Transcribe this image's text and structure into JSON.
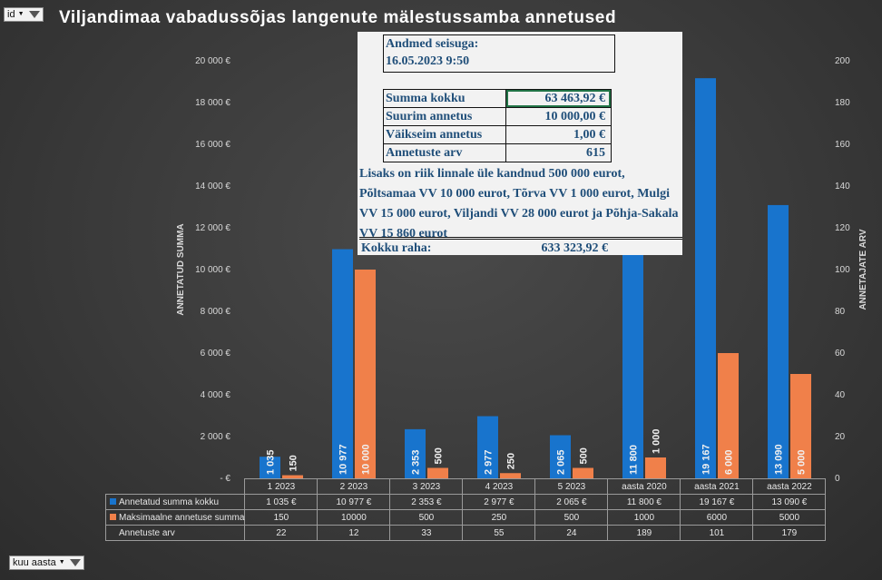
{
  "filters": {
    "top": "id",
    "bottom": "kuu aasta"
  },
  "title": "Viljandimaa vabadussõjas langenute mälestussamba annetused",
  "colors": {
    "blue": "#1874cd",
    "orange": "#f0804a"
  },
  "info": {
    "date_label": "Andmed seisuga:",
    "date_value": "16.05.2023 9:50",
    "rows": [
      {
        "k": "Summa kokku",
        "v": "63 463,92 €"
      },
      {
        "k": "Suurim annetus",
        "v": "10 000,00 €"
      },
      {
        "k": "Väikseim annetus",
        "v": "1,00 €"
      },
      {
        "k": "Annetuste arv",
        "v": "615"
      }
    ],
    "note": "Lisaks on riik linnale üle kandnud 500 000 eurot, Põltsamaa VV 10 000 eurot, Tõrva VV 1 000 eurot, Mulgi VV 15 000 eurot, Viljandi VV 28 000 eurot ja Põhja-Sakala VV 15 860 eurot",
    "total_label": "Kokku raha:",
    "total_value": "633 323,92 €"
  },
  "chart_data": {
    "type": "bar",
    "title": "Viljandimaa vabadussõjas langenute mälestussamba annetused",
    "categories": [
      "1 2023",
      "2 2023",
      "3 2023",
      "4 2023",
      "5 2023",
      "aasta 2020",
      "aasta 2021",
      "aasta 2022"
    ],
    "ylabel": "ANNETATUD SUMMA",
    "y2label": "ANNETAJATE ARV",
    "ylim": [
      0,
      20000
    ],
    "y2lim": [
      0,
      200
    ],
    "yticks": [
      "-  €",
      "2 000 €",
      "4 000 €",
      "6 000 €",
      "8 000 €",
      "10 000 €",
      "12 000 €",
      "14 000 €",
      "16 000 €",
      "18 000 €",
      "20 000 €"
    ],
    "y2ticks": [
      "0",
      "20",
      "40",
      "60",
      "80",
      "100",
      "120",
      "140",
      "160",
      "180",
      "200"
    ],
    "series": [
      {
        "name": "Annetatud summa kokku",
        "values": [
          1035,
          10977,
          2353,
          2977,
          2065,
          11800,
          19167,
          13090
        ],
        "labels": [
          "1 035",
          "10 977",
          "2 353",
          "2 977",
          "2 065",
          "11 800",
          "19 167",
          "13 090"
        ],
        "table": [
          "1 035 €",
          "10 977 €",
          "2 353 €",
          "2 977 €",
          "2 065 €",
          "11 800 €",
          "19 167 €",
          "13 090 €"
        ]
      },
      {
        "name": "Maksimaalne annetuse summa",
        "values": [
          150,
          10000,
          500,
          250,
          500,
          1000,
          6000,
          5000
        ],
        "labels": [
          "150",
          "10 000",
          "500",
          "250",
          "500",
          "1 000",
          "6 000",
          "5 000"
        ],
        "table": [
          "150",
          "10000",
          "500",
          "250",
          "500",
          "1000",
          "6000",
          "5000"
        ]
      },
      {
        "name": "Annetuste arv",
        "values": [
          22,
          12,
          33,
          55,
          24,
          189,
          101,
          179
        ],
        "table": [
          "22",
          "12",
          "33",
          "55",
          "24",
          "189",
          "101",
          "179"
        ]
      }
    ],
    "grid": false,
    "legend": "bottom data table"
  }
}
